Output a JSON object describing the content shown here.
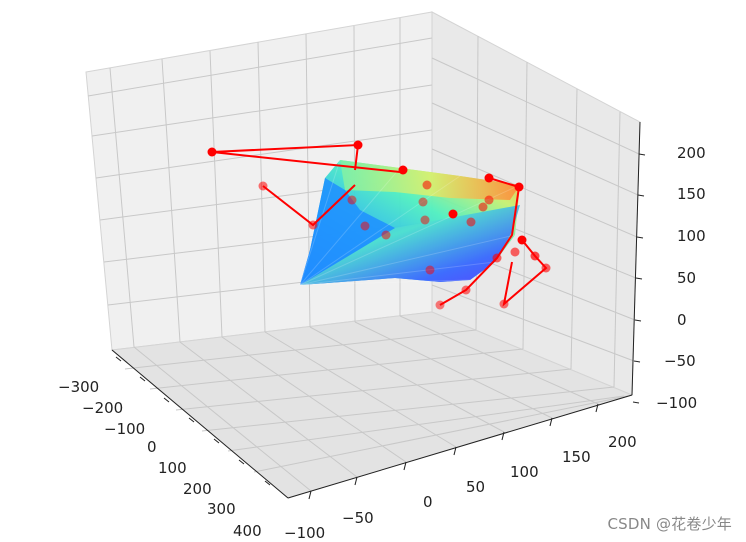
{
  "chart_data": {
    "type": "3d-surface-with-points",
    "axes": {
      "x": {
        "ticks": [
          "−300",
          "−200",
          "−100",
          "0",
          "100",
          "200",
          "300",
          "400"
        ]
      },
      "y": {
        "ticks": [
          "−100",
          "−50",
          "0",
          "50",
          "100",
          "150",
          "200"
        ]
      },
      "z": {
        "ticks": [
          "−100",
          "−50",
          "0",
          "50",
          "100",
          "150",
          "200"
        ]
      }
    },
    "grid": true,
    "pane_color": "#f2f2f2",
    "grid_color": "#c8c8c8",
    "surface_colormap": "rainbow",
    "marker_color": "#ff0000",
    "line_color": "#ff0000"
  },
  "watermark": "CSDN @花卷少年"
}
